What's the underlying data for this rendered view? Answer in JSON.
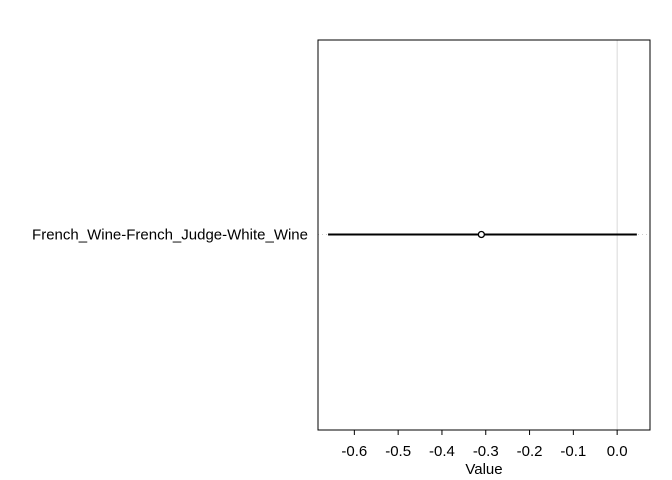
{
  "chart_data": {
    "type": "interval",
    "title": "",
    "xlabel": "Value",
    "ylabel": "",
    "xlim": [
      -0.683,
      0.075
    ],
    "xticks": [
      -0.6,
      -0.5,
      -0.4,
      -0.3,
      -0.2,
      -0.1,
      0.0
    ],
    "xtick_labels": [
      "-0.6",
      "-0.5",
      "-0.4",
      "-0.3",
      "-0.2",
      "-0.1",
      "0.0"
    ],
    "reference_line": 0.0,
    "rows": [
      {
        "label": "French_Wine-French_Judge-White_Wine",
        "estimate": -0.31,
        "lower": -0.66,
        "upper": 0.045
      }
    ]
  },
  "colors": {
    "line": "#000000",
    "reference": "#d9d9d9",
    "guide": "#cccccc",
    "frame": "#000000"
  }
}
